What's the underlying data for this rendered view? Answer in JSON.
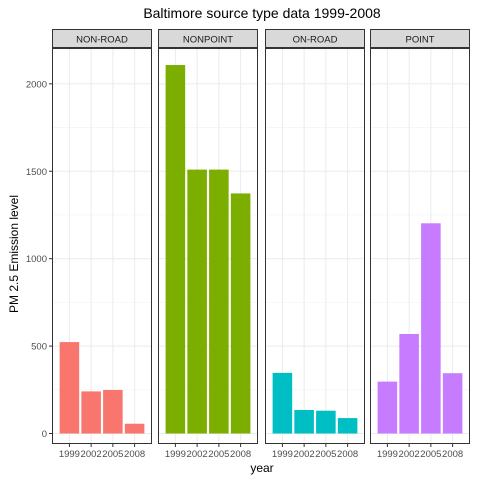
{
  "chart_data": {
    "type": "bar",
    "title": "Baltimore source type data 1999-2008",
    "xlabel": "year",
    "ylabel": "PM 2.5 Emission level",
    "categories": [
      "1999",
      "2002",
      "2005",
      "2008"
    ],
    "x_tick_labels": [
      "1999",
      "2002",
      "2005",
      "2008"
    ],
    "y_ticks": [
      0,
      500,
      1000,
      1500,
      2000
    ],
    "ylim": [
      -60,
      2205
    ],
    "grid": true,
    "legend": "none",
    "facets": [
      {
        "name": "NON-ROAD",
        "color": "#F8766D",
        "values": [
          522.94,
          240.85,
          248.93,
          55.82
        ]
      },
      {
        "name": "NONPOINT",
        "color": "#7CAE00",
        "values": [
          2107.63,
          1509.5,
          1509.5,
          1373.21
        ]
      },
      {
        "name": "ON-ROAD",
        "color": "#00BFC4",
        "values": [
          346.82,
          134.31,
          130.43,
          88.28
        ]
      },
      {
        "name": "POINT",
        "color": "#C77CFF",
        "values": [
          296.8,
          569.26,
          1202.49,
          344.98
        ]
      }
    ]
  }
}
